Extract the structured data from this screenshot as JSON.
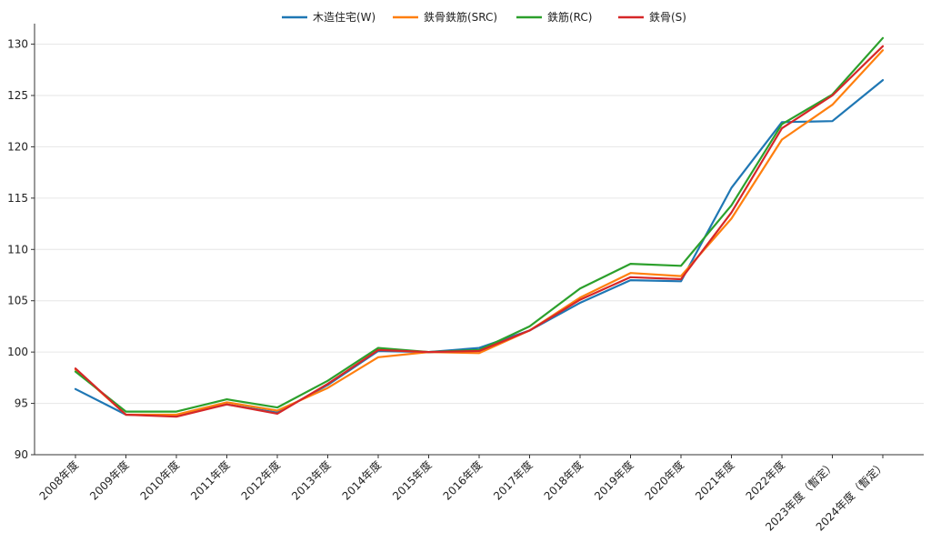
{
  "chart_data": {
    "type": "line",
    "title": "",
    "xlabel": "",
    "ylabel": "",
    "categories": [
      "2008年度",
      "2009年度",
      "2010年度",
      "2011年度",
      "2012年度",
      "2013年度",
      "2014年度",
      "2015年度",
      "2016年度",
      "2017年度",
      "2018年度",
      "2019年度",
      "2020年度",
      "2021年度",
      "2022年度",
      "2023年度（暫定）",
      "2024年度（暫定）"
    ],
    "ylim": [
      90,
      132
    ],
    "yticks": [
      90,
      95,
      100,
      105,
      110,
      115,
      120,
      125,
      130
    ],
    "grid": "horizontal",
    "legend_position": "top-center",
    "series": [
      {
        "name": "木造住宅(W)",
        "color": "#1f77b4",
        "values": [
          96.4,
          93.9,
          93.8,
          94.9,
          94.1,
          96.8,
          100.1,
          100.0,
          100.4,
          102.1,
          104.8,
          107.0,
          106.9,
          116.0,
          122.4,
          122.5,
          126.5
        ]
      },
      {
        "name": "鉄骨鉄筋(SRC)",
        "color": "#ff7f0e",
        "values": [
          98.3,
          93.9,
          93.9,
          95.1,
          94.3,
          96.5,
          99.5,
          100.0,
          99.9,
          102.1,
          105.3,
          107.7,
          107.4,
          113.0,
          120.7,
          124.1,
          129.4
        ]
      },
      {
        "name": "鉄筋(RC)",
        "color": "#2ca02c",
        "values": [
          98.1,
          94.2,
          94.2,
          95.4,
          94.6,
          97.2,
          100.4,
          100.0,
          100.2,
          102.5,
          106.2,
          108.6,
          108.4,
          114.3,
          122.2,
          125.1,
          130.6
        ]
      },
      {
        "name": "鉄骨(S)",
        "color": "#d62728",
        "values": [
          98.4,
          93.9,
          93.7,
          94.9,
          94.0,
          96.9,
          100.2,
          100.0,
          100.1,
          102.1,
          105.1,
          107.3,
          107.1,
          113.6,
          121.8,
          125.0,
          129.8
        ]
      }
    ]
  }
}
